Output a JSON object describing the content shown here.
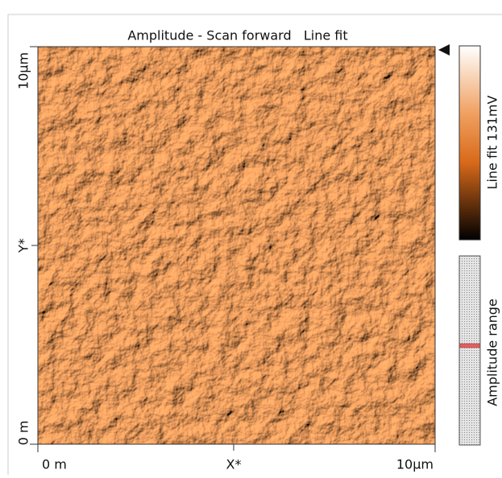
{
  "title": "Amplitude - Scan forward   Line fit",
  "y_axis": {
    "top": "10µm",
    "middle": "Y*",
    "bottom": "0 m"
  },
  "x_axis": {
    "left": "0 m",
    "middle": "X*",
    "right": "10µm"
  },
  "colorbar": {
    "label": "Line fit 131mV"
  },
  "range_bar": {
    "label": "Amplitude range"
  }
}
